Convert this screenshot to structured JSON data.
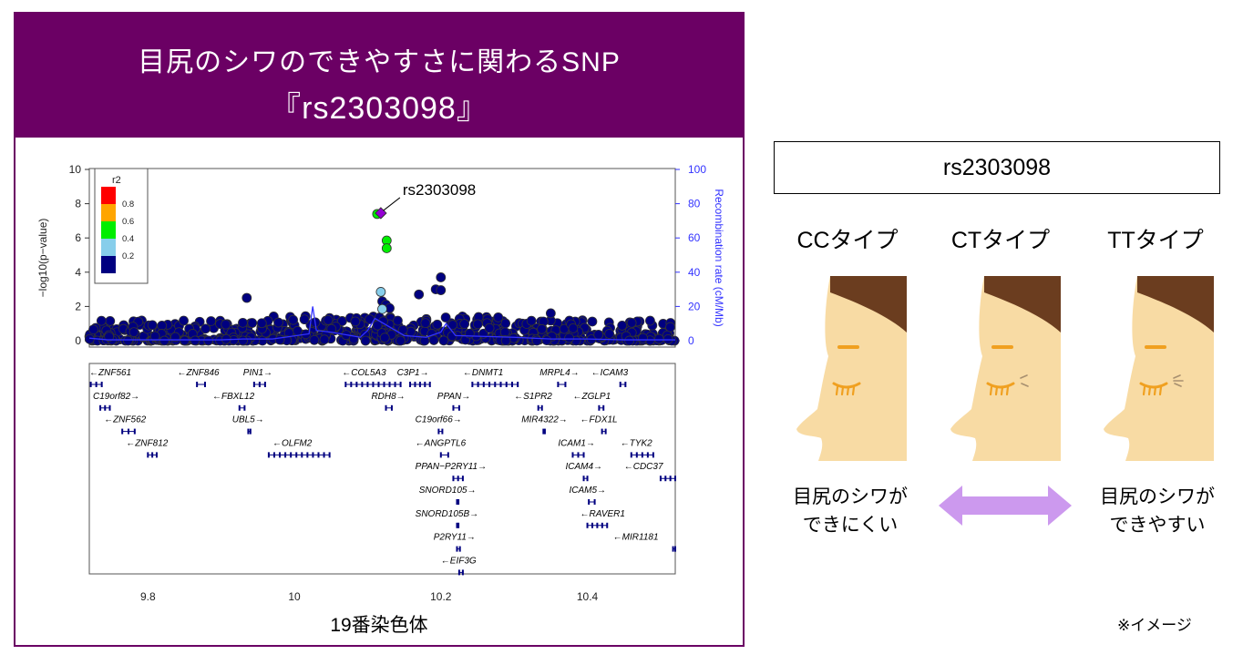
{
  "title": {
    "line1": "目尻のシワのできやすさに関わるSNP",
    "line2": "『rs2303098』"
  },
  "chart_data": {
    "type": "scatter",
    "title": "目尻のシワのできやすさに関わるSNP 『rs2303098』",
    "xlabel": "19番染色体",
    "ylabel": "−log10(p−value)",
    "y2label": "Recombination rate (cM/Mb)",
    "xlim": [
      9.72,
      10.52
    ],
    "ylim": [
      0,
      10
    ],
    "y2lim": [
      0,
      100
    ],
    "xticks": [
      9.8,
      10,
      10.2,
      10.4
    ],
    "yticks": [
      0,
      2,
      4,
      6,
      8,
      10
    ],
    "y2ticks": [
      0,
      20,
      40,
      60,
      80,
      100
    ],
    "lead_snp": {
      "label": "rs2303098",
      "x": 10.118,
      "y": 7.45
    },
    "legend": {
      "title": "r2",
      "position": "top-left",
      "breaks": [
        "0.8",
        "0.6",
        "0.4",
        "0.2"
      ],
      "colors": [
        "#ff0000",
        "#ffa500",
        "#00ee00",
        "#87ceeb",
        "#000080"
      ]
    },
    "highlight_points": [
      {
        "x": 10.113,
        "y": 7.4,
        "color": "#00ee00"
      },
      {
        "x": 10.126,
        "y": 5.85,
        "color": "#00ee00"
      },
      {
        "x": 10.126,
        "y": 5.4,
        "color": "#00ee00"
      },
      {
        "x": 10.118,
        "y": 2.85,
        "color": "#87ceeb"
      },
      {
        "x": 10.12,
        "y": 1.85,
        "color": "#87ceeb"
      }
    ],
    "background_points": [
      {
        "x": 9.935,
        "y": 2.5
      },
      {
        "x": 10.2,
        "y": 3.7
      },
      {
        "x": 10.193,
        "y": 3.0
      },
      {
        "x": 10.2,
        "y": 2.95
      },
      {
        "x": 10.17,
        "y": 2.7
      },
      {
        "x": 10.12,
        "y": 2.3
      },
      {
        "x": 10.125,
        "y": 2.1
      },
      {
        "x": 10.13,
        "y": 1.9
      },
      {
        "x": 10.35,
        "y": 1.6
      },
      {
        "x": 10.43,
        "y": 0.4
      }
    ],
    "recombination": [
      {
        "x": 9.72,
        "y": 1.5
      },
      {
        "x": 9.745,
        "y": 0.5
      },
      {
        "x": 9.9,
        "y": 0.5
      },
      {
        "x": 9.93,
        "y": 1.0
      },
      {
        "x": 9.97,
        "y": 1.0
      },
      {
        "x": 10.02,
        "y": 4
      },
      {
        "x": 10.025,
        "y": 20
      },
      {
        "x": 10.03,
        "y": 6
      },
      {
        "x": 10.05,
        "y": 5
      },
      {
        "x": 10.09,
        "y": 2
      },
      {
        "x": 10.1,
        "y": 6
      },
      {
        "x": 10.11,
        "y": 13
      },
      {
        "x": 10.15,
        "y": 3
      },
      {
        "x": 10.18,
        "y": 2
      },
      {
        "x": 10.2,
        "y": 5
      },
      {
        "x": 10.207,
        "y": 10
      },
      {
        "x": 10.22,
        "y": 3
      },
      {
        "x": 10.3,
        "y": 2
      },
      {
        "x": 10.35,
        "y": 1
      },
      {
        "x": 10.4,
        "y": 1
      },
      {
        "x": 10.45,
        "y": 0.5
      },
      {
        "x": 10.52,
        "y": 0.5
      }
    ],
    "genes": [
      {
        "name": "ZNF561",
        "dir": "left",
        "label_x": 9.72,
        "row": 0,
        "start": 9.722,
        "end": 9.737
      },
      {
        "name": "ZNF846",
        "dir": "left",
        "label_x": 9.84,
        "row": 0,
        "start": 9.867,
        "end": 9.878
      },
      {
        "name": "PIN1",
        "dir": "right",
        "label_x": 9.93,
        "row": 0,
        "start": 9.945,
        "end": 9.96
      },
      {
        "name": "COL5A3",
        "dir": "left",
        "label_x": 10.065,
        "row": 0,
        "start": 10.07,
        "end": 10.145
      },
      {
        "name": "C3P1",
        "dir": "right",
        "label_x": 10.14,
        "row": 0,
        "start": 10.158,
        "end": 10.185
      },
      {
        "name": "DNMT1",
        "dir": "left",
        "label_x": 10.23,
        "row": 0,
        "start": 10.243,
        "end": 10.305
      },
      {
        "name": "MRPL4",
        "dir": "right",
        "label_x": 10.335,
        "row": 0,
        "start": 10.36,
        "end": 10.37
      },
      {
        "name": "ICAM3",
        "dir": "left",
        "label_x": 10.405,
        "row": 0,
        "start": 10.445,
        "end": 10.452
      },
      {
        "name": "C19orf82",
        "dir": "right",
        "label_x": 9.725,
        "row": 1,
        "start": 9.735,
        "end": 9.748
      },
      {
        "name": "FBXL12",
        "dir": "left",
        "label_x": 9.888,
        "row": 1,
        "start": 9.925,
        "end": 9.932
      },
      {
        "name": "RDH8",
        "dir": "right",
        "label_x": 10.105,
        "row": 1,
        "start": 10.125,
        "end": 10.133
      },
      {
        "name": "PPAN",
        "dir": "right",
        "label_x": 10.195,
        "row": 1,
        "start": 10.217,
        "end": 10.225
      },
      {
        "name": "S1PR2",
        "dir": "left",
        "label_x": 10.3,
        "row": 1,
        "start": 10.333,
        "end": 10.338
      },
      {
        "name": "ZGLP1",
        "dir": "left",
        "label_x": 10.38,
        "row": 1,
        "start": 10.416,
        "end": 10.422
      },
      {
        "name": "ZNF562",
        "dir": "left",
        "label_x": 9.74,
        "row": 2,
        "start": 9.765,
        "end": 9.782
      },
      {
        "name": "UBL5",
        "dir": "right",
        "label_x": 9.915,
        "row": 2,
        "start": 9.937,
        "end": 9.94
      },
      {
        "name": "C19orf66",
        "dir": "right",
        "label_x": 10.165,
        "row": 2,
        "start": 10.197,
        "end": 10.202
      },
      {
        "name": "MIR4322",
        "dir": "right",
        "label_x": 10.31,
        "row": 2,
        "start": 10.34,
        "end": 10.342
      },
      {
        "name": "FDX1L",
        "dir": "left",
        "label_x": 10.39,
        "row": 2,
        "start": 10.42,
        "end": 10.425
      },
      {
        "name": "ZNF812",
        "dir": "left",
        "label_x": 9.77,
        "row": 3,
        "start": 9.8,
        "end": 9.812
      },
      {
        "name": "OLFM2",
        "dir": "left",
        "label_x": 9.97,
        "row": 3,
        "start": 9.965,
        "end": 10.048
      },
      {
        "name": "ANGPTL6",
        "dir": "left",
        "label_x": 10.165,
        "row": 3,
        "start": 10.2,
        "end": 10.21
      },
      {
        "name": "ICAM1",
        "dir": "right",
        "label_x": 10.36,
        "row": 3,
        "start": 10.38,
        "end": 10.395
      },
      {
        "name": "TYK2",
        "dir": "left",
        "label_x": 10.445,
        "row": 3,
        "start": 10.46,
        "end": 10.49
      },
      {
        "name": "PPAN−P2RY11",
        "dir": "right",
        "label_x": 10.165,
        "row": 4,
        "start": 10.217,
        "end": 10.23
      },
      {
        "name": "ICAM4",
        "dir": "right",
        "label_x": 10.37,
        "row": 4,
        "start": 10.395,
        "end": 10.4
      },
      {
        "name": "CDC37",
        "dir": "left",
        "label_x": 10.45,
        "row": 4,
        "start": 10.5,
        "end": 10.52
      },
      {
        "name": "SNORD105",
        "dir": "right",
        "label_x": 10.17,
        "row": 5,
        "start": 10.222,
        "end": 10.224
      },
      {
        "name": "ICAM5",
        "dir": "right",
        "label_x": 10.375,
        "row": 5,
        "start": 10.402,
        "end": 10.41
      },
      {
        "name": "SNORD105B",
        "dir": "right",
        "label_x": 10.165,
        "row": 6,
        "start": 10.222,
        "end": 10.224
      },
      {
        "name": "RAVER1",
        "dir": "left",
        "label_x": 10.39,
        "row": 6,
        "start": 10.4,
        "end": 10.427
      },
      {
        "name": "P2RY11",
        "dir": "right",
        "label_x": 10.19,
        "row": 7,
        "start": 10.222,
        "end": 10.226
      },
      {
        "name": "MIR1181",
        "dir": "left",
        "label_x": 10.435,
        "row": 7,
        "start": 10.517,
        "end": 10.52
      },
      {
        "name": "EIF3G",
        "dir": "left",
        "label_x": 10.2,
        "row": 8,
        "start": 10.225,
        "end": 10.23
      }
    ]
  },
  "snp_box": {
    "label": "rs2303098"
  },
  "genotypes": [
    {
      "label": "CCタイプ",
      "wrinkle_level": 0
    },
    {
      "label": "CTタイプ",
      "wrinkle_level": 1
    },
    {
      "label": "TTタイプ",
      "wrinkle_level": 2
    }
  ],
  "outcomes": {
    "left": {
      "line1": "目尻のシワが",
      "line2": "できにくい"
    },
    "right": {
      "line1": "目尻のシワが",
      "line2": "できやすい"
    }
  },
  "note": "※イメージ",
  "colors": {
    "banner": "#6b0064",
    "arrow": "#cc99ee",
    "skin": "#f8dba4",
    "hair": "#6b3d1f",
    "eye": "#f0a020",
    "recomb": "#3333ff",
    "gene": "#000080"
  }
}
